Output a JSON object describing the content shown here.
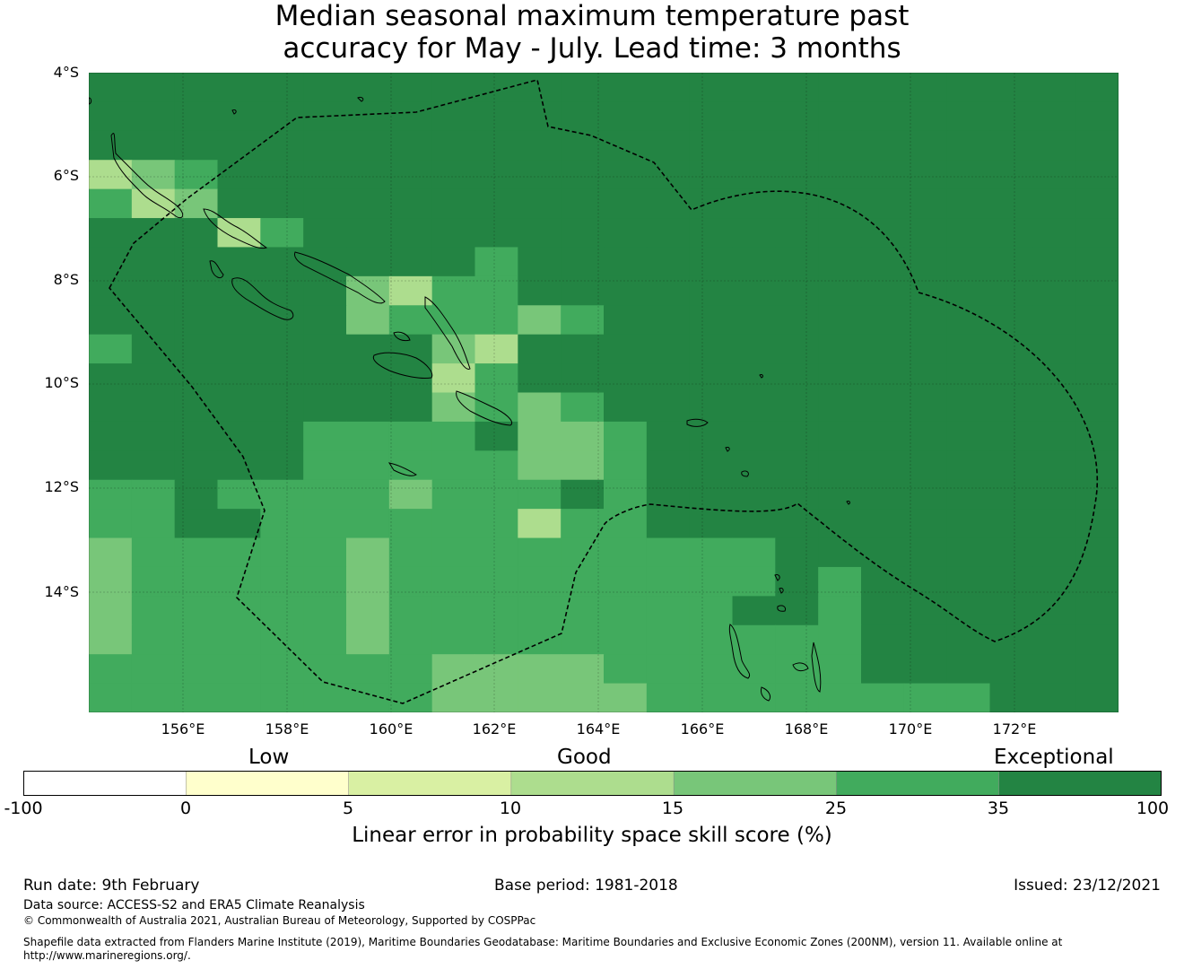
{
  "title": {
    "line1": "Median seasonal maximum temperature past",
    "line2": "accuracy for May - July. Lead time: 3 months"
  },
  "map": {
    "lat_labels": [
      "4°S",
      "6°S",
      "8°S",
      "10°S",
      "12°S",
      "14°S"
    ],
    "lon_labels": [
      "156°E",
      "158°E",
      "160°E",
      "162°E",
      "164°E",
      "166°E",
      "168°E",
      "170°E",
      "172°E"
    ],
    "coastline_color": "#000000",
    "eez_boundary_style": "dashed"
  },
  "colorbar": {
    "qualitative_labels": [
      "Low",
      "Good",
      "Exceptional"
    ],
    "tick_labels": [
      "-100",
      "0",
      "5",
      "10",
      "15",
      "25",
      "35",
      "100"
    ],
    "bins": [
      {
        "range": "-100 to 0",
        "color": "#ffffff"
      },
      {
        "range": "0 to 5",
        "color": "#ffffcc"
      },
      {
        "range": "5 to 10",
        "color": "#d9f0a3"
      },
      {
        "range": "10 to 15",
        "color": "#addd8e"
      },
      {
        "range": "15 to 25",
        "color": "#78c679"
      },
      {
        "range": "25 to 35",
        "color": "#41ab5d"
      },
      {
        "range": "35 to 100",
        "color": "#238443"
      }
    ],
    "label": "Linear error in probability space skill score (%)"
  },
  "footer": {
    "run_date": "Run date: 9th February",
    "base_period": "Base period: 1981-2018",
    "issued": "Issued: 23/12/2021",
    "data_source": "Data source: ACCESS-S2 and ERA5 Climate Reanalysis",
    "copyright": "© Commonwealth of Australia 2021, Australian Bureau of Meteorology, Supported by COSPPac",
    "shapefile_line1": "Shapefile data extracted from Flanders Marine Institute (2019), Maritime Boundaries Geodatabase: Maritime Boundaries and Exclusive Economic Zones (200NM), version 11. Available online at",
    "shapefile_line2": "http://www.marineregions.org/."
  },
  "grid_categories_legend": {
    "1": "#238443",
    "2": "#41ab5d",
    "3": "#78c679",
    "4": "#addd8e"
  }
}
